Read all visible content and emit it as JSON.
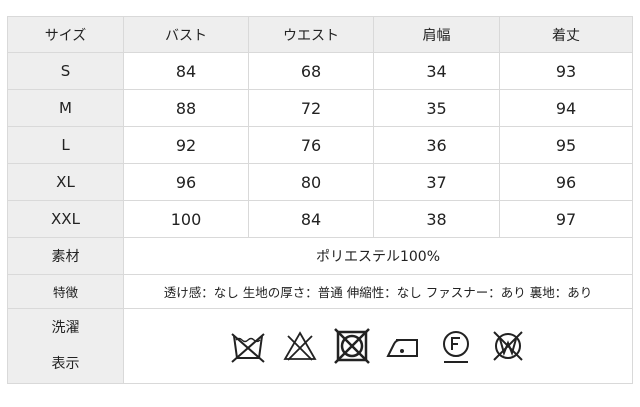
{
  "header": [
    "サイズ",
    "バスト",
    "ウエスト",
    "肩幅",
    "着丈"
  ],
  "rows": [
    [
      "S",
      "84",
      "68",
      "34",
      "93"
    ],
    [
      "M",
      "88",
      "72",
      "35",
      "94"
    ],
    [
      "L",
      "92",
      "76",
      "36",
      "95"
    ],
    [
      "XL",
      "96",
      "80",
      "37",
      "96"
    ],
    [
      "XXL",
      "100",
      "84",
      "38",
      "97"
    ]
  ],
  "material": {
    "label": "素材",
    "value": "ポリエステル100%"
  },
  "features": {
    "label": "特徴",
    "value": "透け感：なし 生地の厚さ：普通 伸縮性：なし ファスナー：あり 裏地：あり"
  },
  "care": {
    "label_line1": "洗濯",
    "label_line2": "表示",
    "icons": [
      "no-wash-icon",
      "no-bleach-icon",
      "no-tumble-dry-icon",
      "iron-low-icon",
      "dry-clean-f-icon",
      "no-wet-clean-icon"
    ]
  }
}
